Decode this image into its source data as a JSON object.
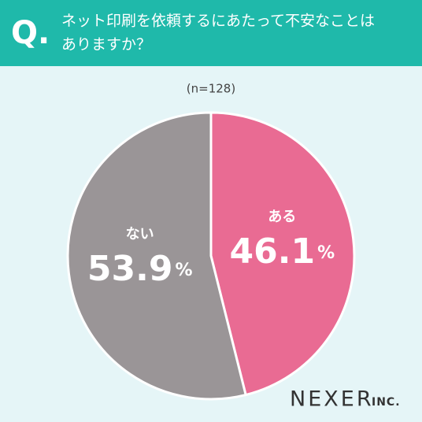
{
  "chart_data": {
    "type": "pie",
    "q_mark": "Q.",
    "title_lines": [
      "ネット印刷を依頼するにあたって不安なことは",
      "ありますか？"
    ],
    "subtitle": "(n=128)",
    "categories": [
      "ある",
      "ない"
    ],
    "values": [
      46.1,
      53.9
    ],
    "unit": "%",
    "colors": [
      "#e96b93",
      "#9a9597"
    ],
    "logo": "NEXER",
    "logo_suffix": "INC."
  }
}
